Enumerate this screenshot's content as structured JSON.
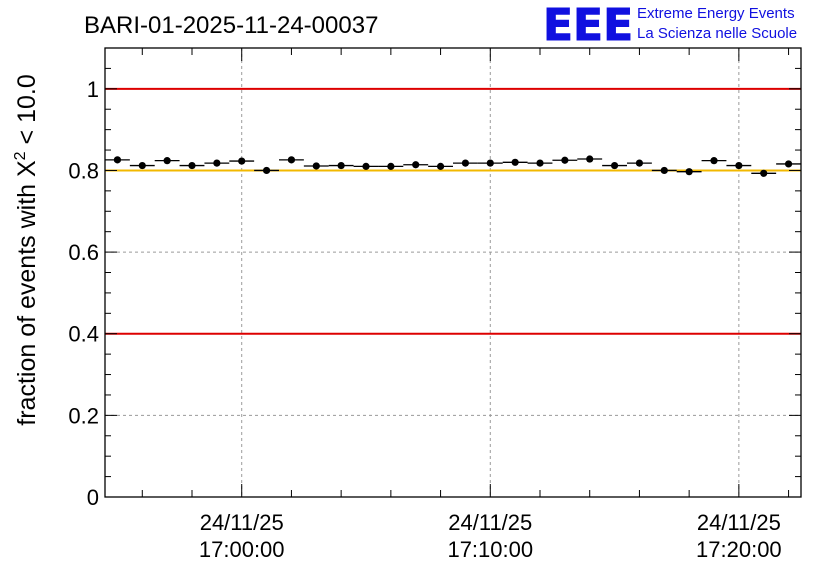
{
  "header": {
    "run_title": "BARI-01-2025-11-24-00037",
    "logo_mark": "EEE",
    "logo_line1": "Extreme Energy Events",
    "logo_line2": "La Scienza nelle Scuole",
    "logo_color": "#1010e0"
  },
  "chart_data": {
    "type": "scatter",
    "title": "BARI-01-2025-11-24-00037",
    "ylabel": "fraction of events with χ² < 10.0",
    "ylabel_parts": {
      "pre": "fraction of events with X",
      "sup": "2",
      "post": " < 10.0"
    },
    "xlabel": "",
    "ylim": [
      0,
      1.1
    ],
    "x_time_range": [
      "24/11/25 16:54:30",
      "24/11/25 17:22:30"
    ],
    "y_ticks": [
      "0",
      "0.2",
      "0.4",
      "0.6",
      "0.8",
      "1"
    ],
    "x_ticks": [
      {
        "date": "24/11/25",
        "time": "17:00:00"
      },
      {
        "date": "24/11/25",
        "time": "17:10:00"
      },
      {
        "date": "24/11/25",
        "time": "17:20:00"
      }
    ],
    "grid": true,
    "reference_lines": [
      {
        "y": 1.0,
        "color": "#dd0000"
      },
      {
        "y": 0.4,
        "color": "#dd0000"
      },
      {
        "y": 0.8,
        "color": "#f2b800"
      }
    ],
    "series": [
      {
        "marker_color": "#000000",
        "x": [
          "16:55:00",
          "16:56:00",
          "16:57:00",
          "16:58:00",
          "16:59:00",
          "17:00:00",
          "17:01:00",
          "17:02:00",
          "17:03:00",
          "17:04:00",
          "17:05:00",
          "17:06:00",
          "17:07:00",
          "17:08:00",
          "17:09:00",
          "17:10:00",
          "17:11:00",
          "17:12:00",
          "17:13:00",
          "17:14:00",
          "17:15:00",
          "17:16:00",
          "17:17:00",
          "17:18:00",
          "17:19:00",
          "17:20:00",
          "17:21:00",
          "17:22:00"
        ],
        "y": [
          0.826,
          0.812,
          0.824,
          0.812,
          0.818,
          0.823,
          0.8,
          0.826,
          0.811,
          0.812,
          0.81,
          0.81,
          0.814,
          0.81,
          0.818,
          0.818,
          0.82,
          0.818,
          0.825,
          0.828,
          0.812,
          0.818,
          0.8,
          0.797,
          0.824,
          0.812,
          0.793,
          0.816
        ],
        "x_halfwidth_seconds": 30
      }
    ]
  }
}
